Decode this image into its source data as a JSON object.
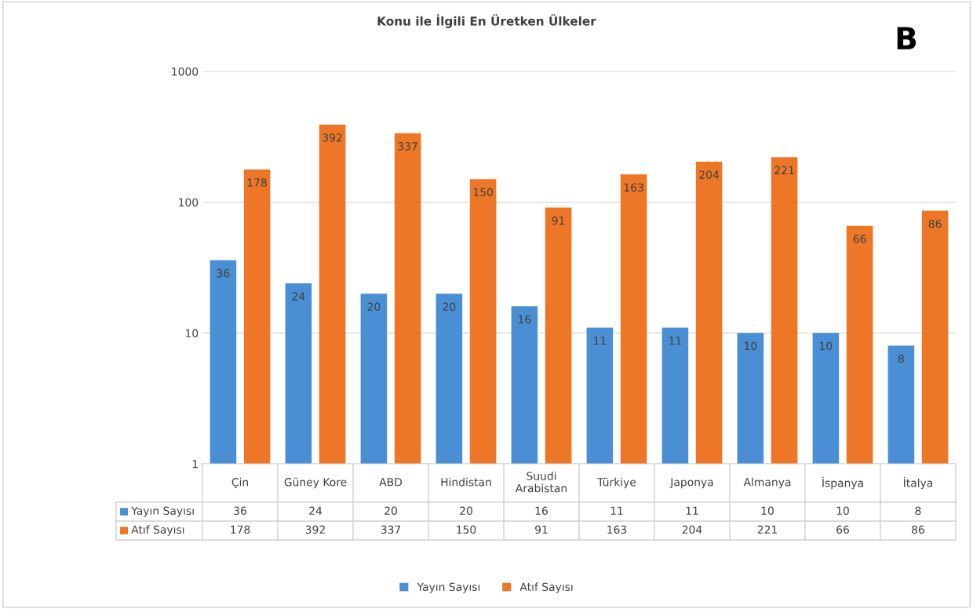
{
  "chart_data": {
    "type": "bar",
    "title": "Konu ile İlgili En Üretken Ülkeler",
    "categories": [
      "Çin",
      "Güney Kore",
      "ABD",
      "Hindistan",
      "Suudi Arabistan",
      "Türkiye",
      "Japonya",
      "Almanya",
      "İspanya",
      "İtalya"
    ],
    "series": [
      {
        "name": "Yayın Sayısı",
        "color": "#4a8fd4",
        "values": [
          36,
          24,
          20,
          20,
          16,
          11,
          11,
          10,
          10,
          8
        ],
        "value_labels": [
          "36",
          "24",
          "20",
          "20",
          "16",
          "11",
          "11",
          "10",
          "10",
          "8"
        ]
      },
      {
        "name": "Atıf Sayısı",
        "color": "#ee7727",
        "values": [
          178,
          392,
          337,
          150,
          91,
          163,
          204,
          221,
          66,
          86
        ],
        "value_labels": [
          "178",
          "392",
          "337",
          "150",
          "91",
          "163",
          "204",
          "221",
          "66",
          "86"
        ]
      }
    ],
    "log": true,
    "ylim": [
      1,
      1000
    ],
    "yticks": [
      1,
      10,
      100,
      1000
    ],
    "grid": "y",
    "data_labels": true,
    "legend": "bottom",
    "annotations": [
      "B",
      "36",
      "24",
      "20",
      "20",
      "16",
      "11",
      "11",
      "10",
      "10",
      "8",
      "178",
      "392",
      "337",
      "150",
      "91",
      "163",
      "204",
      "221",
      "66",
      "86"
    ]
  }
}
